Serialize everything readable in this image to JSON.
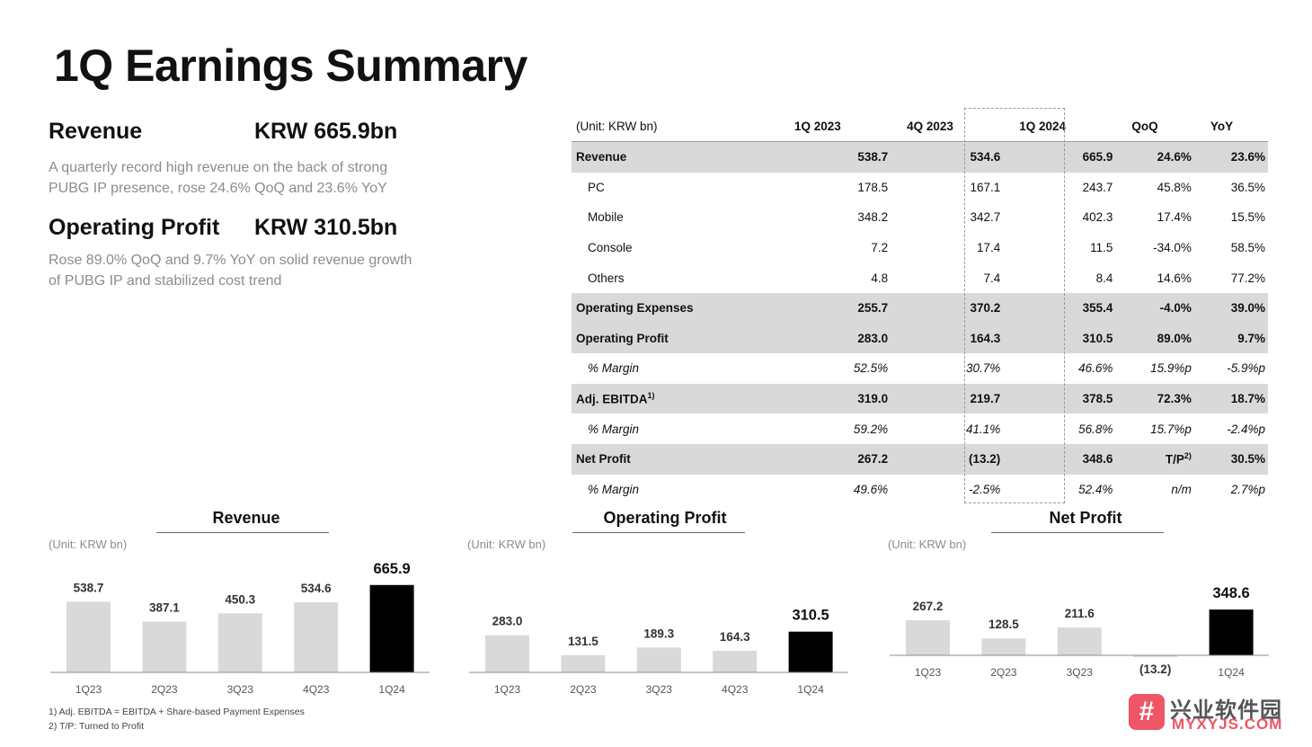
{
  "title": "1Q Earnings Summary",
  "revenue": {
    "label": "Revenue",
    "value": "KRW 665.9bn",
    "desc_line1": "A quarterly record high revenue on the back of strong",
    "desc_line2": "PUBG IP presence, rose 24.6% QoQ and 23.6% YoY"
  },
  "operating_profit": {
    "label": "Operating Profit",
    "value": "KRW 310.5bn",
    "desc_line1": "Rose 89.0% QoQ and 9.7% YoY on solid revenue growth",
    "desc_line2": "of PUBG IP and stabilized cost trend"
  },
  "table": {
    "unit": "(Unit: KRW bn)",
    "headers": [
      "1Q 2023",
      "4Q 2023",
      "1Q 2024",
      "QoQ",
      "YoY"
    ],
    "rows": [
      {
        "label": "Revenue",
        "cells": [
          "538.7",
          "534.6",
          "665.9",
          "24.6%",
          "23.6%"
        ]
      },
      {
        "label": "PC",
        "cells": [
          "178.5",
          "167.1",
          "243.7",
          "45.8%",
          "36.5%"
        ]
      },
      {
        "label": "Mobile",
        "cells": [
          "348.2",
          "342.7",
          "402.3",
          "17.4%",
          "15.5%"
        ]
      },
      {
        "label": "Console",
        "cells": [
          "7.2",
          "17.4",
          "11.5",
          "-34.0%",
          "58.5%"
        ]
      },
      {
        "label": "Others",
        "cells": [
          "4.8",
          "7.4",
          "8.4",
          "14.6%",
          "77.2%"
        ]
      },
      {
        "label": "Operating Expenses",
        "cells": [
          "255.7",
          "370.2",
          "355.4",
          "-4.0%",
          "39.0%"
        ]
      },
      {
        "label": "Operating Profit",
        "cells": [
          "283.0",
          "164.3",
          "310.5",
          "89.0%",
          "9.7%"
        ]
      },
      {
        "label": "% Margin",
        "cells": [
          "52.5%",
          "30.7%",
          "46.6%",
          "15.9%p",
          "-5.9%p"
        ]
      },
      {
        "label": "Adj. EBITDA",
        "sup": "1)",
        "cells": [
          "319.0",
          "219.7",
          "378.5",
          "72.3%",
          "18.7%"
        ]
      },
      {
        "label": "% Margin",
        "cells": [
          "59.2%",
          "41.1%",
          "56.8%",
          "15.7%p",
          "-2.4%p"
        ]
      },
      {
        "label": "Net Profit",
        "cells": [
          "267.2",
          "(13.2)",
          "348.6",
          "T/P",
          "30.5%"
        ],
        "cell_sup": "2)"
      },
      {
        "label": "% Margin",
        "cells": [
          "49.6%",
          "-2.5%",
          "52.4%",
          "n/m",
          "2.7%p"
        ]
      }
    ]
  },
  "chart_data": [
    {
      "type": "bar",
      "title": "Revenue",
      "unit": "(Unit: KRW bn)",
      "categories": [
        "1Q23",
        "2Q23",
        "3Q23",
        "4Q23",
        "1Q24"
      ],
      "values": [
        538.7,
        387.1,
        450.3,
        534.6,
        665.9
      ],
      "labels": [
        "538.7",
        "387.1",
        "450.3",
        "534.6",
        "665.9"
      ],
      "colors": [
        "#d9d9d9",
        "#d9d9d9",
        "#d9d9d9",
        "#d9d9d9",
        "#000000"
      ]
    },
    {
      "type": "bar",
      "title": "Operating Profit",
      "unit": "(Unit: KRW bn)",
      "categories": [
        "1Q23",
        "2Q23",
        "3Q23",
        "4Q23",
        "1Q24"
      ],
      "values": [
        283.0,
        131.5,
        189.3,
        164.3,
        310.5
      ],
      "labels": [
        "283.0",
        "131.5",
        "189.3",
        "164.3",
        "310.5"
      ],
      "colors": [
        "#d9d9d9",
        "#d9d9d9",
        "#d9d9d9",
        "#d9d9d9",
        "#000000"
      ]
    },
    {
      "type": "bar",
      "title": "Net Profit",
      "unit": "(Unit: KRW bn)",
      "categories": [
        "1Q23",
        "2Q23",
        "3Q23",
        "4Q23",
        "1Q24"
      ],
      "values": [
        267.2,
        128.5,
        211.6,
        -13.2,
        348.6
      ],
      "labels": [
        "267.2",
        "128.5",
        "211.6",
        "(13.2)",
        "348.6"
      ],
      "colors": [
        "#d9d9d9",
        "#d9d9d9",
        "#d9d9d9",
        "#d9d9d9",
        "#000000"
      ]
    }
  ],
  "footnotes": [
    "1) Adj. EBITDA = EBITDA + Share-based Payment Expenses",
    "2) T/P: Turned to Profit"
  ],
  "watermark": {
    "mark": "#",
    "cn": "兴业软件园",
    "en": "MYXYJS.COM"
  }
}
